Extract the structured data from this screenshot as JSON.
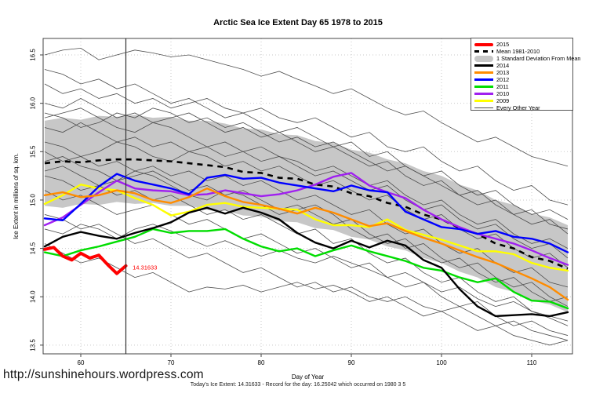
{
  "footer": {
    "url_watermark": "http://sunshinehours.wordpress.com",
    "caption": "Today's Ice Extent: 14.31633  - Record for the day: 16.25042 which occurred on 1980 3 5"
  },
  "chart_data": {
    "type": "line",
    "title": "Arctic Sea Ice Extent Day 65 1978 to 2015",
    "xlabel": "Day of Year",
    "ylabel": "Ice Extent in millions of sq. km.",
    "xlim": [
      55.8,
      114.5
    ],
    "ylim": [
      13.4,
      16.68
    ],
    "xticks": [
      60,
      70,
      80,
      90,
      100,
      110
    ],
    "yticks": [
      "13.5",
      "14.0",
      "14.5",
      "15.0",
      "15.5",
      "16.0",
      "16.5"
    ],
    "grid": "dotted",
    "legend_position": "top-right",
    "vline_x": 65,
    "annotation": {
      "text": "14.31633",
      "x": 65.4,
      "y": 14.3,
      "color": "#ff0000"
    },
    "x": [
      56,
      58,
      60,
      62,
      64,
      66,
      68,
      70,
      72,
      74,
      76,
      78,
      80,
      82,
      84,
      86,
      88,
      90,
      92,
      94,
      96,
      98,
      100,
      102,
      104,
      106,
      108,
      110,
      112,
      114
    ],
    "band": {
      "name": "1 Standard Deviation From Mean",
      "color": "#c7c7c7",
      "upper": [
        15.82,
        15.85,
        15.83,
        15.87,
        15.86,
        15.88,
        15.85,
        15.86,
        15.82,
        15.82,
        15.79,
        15.74,
        15.73,
        15.68,
        15.67,
        15.61,
        15.59,
        15.52,
        15.49,
        15.42,
        15.38,
        15.3,
        15.25,
        15.16,
        15.1,
        15.0,
        14.95,
        14.86,
        14.82,
        14.74
      ],
      "lower": [
        14.94,
        14.92,
        14.96,
        14.95,
        14.98,
        14.96,
        14.97,
        14.94,
        14.94,
        14.9,
        14.89,
        14.84,
        14.83,
        14.78,
        14.77,
        14.71,
        14.69,
        14.62,
        14.59,
        14.52,
        14.48,
        14.4,
        14.35,
        14.26,
        14.2,
        14.1,
        14.05,
        13.96,
        13.92,
        13.84
      ]
    },
    "mean": {
      "name": "Mean 1981-2010",
      "color": "#000000",
      "values": [
        15.38,
        15.4,
        15.39,
        15.41,
        15.42,
        15.42,
        15.41,
        15.4,
        15.38,
        15.36,
        15.34,
        15.29,
        15.28,
        15.23,
        15.22,
        15.16,
        15.14,
        15.07,
        15.04,
        14.97,
        14.93,
        14.85,
        14.8,
        14.71,
        14.65,
        14.55,
        14.5,
        14.41,
        14.37,
        14.29
      ]
    },
    "series": [
      {
        "name": "2015",
        "color": "#ff0000",
        "width": 4,
        "x": [
          56,
          57,
          58,
          59,
          60,
          61,
          62,
          63,
          64,
          65
        ],
        "values": [
          14.49,
          14.51,
          14.42,
          14.38,
          14.45,
          14.4,
          14.43,
          14.33,
          14.24,
          14.32
        ]
      },
      {
        "name": "2014",
        "color": "#000000",
        "width": 2.4,
        "values": [
          14.52,
          14.62,
          14.67,
          14.63,
          14.6,
          14.66,
          14.71,
          14.77,
          14.87,
          14.92,
          14.86,
          14.92,
          14.87,
          14.8,
          14.66,
          14.56,
          14.5,
          14.58,
          14.51,
          14.58,
          14.53,
          14.38,
          14.3,
          14.08,
          13.9,
          13.8,
          13.81,
          13.82,
          13.8,
          13.84
        ]
      },
      {
        "name": "2013",
        "color": "#ff8c00",
        "width": 2.4,
        "values": [
          15.05,
          15.08,
          15.03,
          15.05,
          15.1,
          15.07,
          15.0,
          14.97,
          15.03,
          15.12,
          15.04,
          14.98,
          14.95,
          14.91,
          14.86,
          14.92,
          14.87,
          14.8,
          14.73,
          14.76,
          14.68,
          14.61,
          14.55,
          14.48,
          14.41,
          14.35,
          14.27,
          14.19,
          14.1,
          13.97
        ]
      },
      {
        "name": "2012",
        "color": "#0000ff",
        "width": 2.4,
        "values": [
          14.81,
          14.79,
          14.96,
          15.14,
          15.27,
          15.2,
          15.16,
          15.12,
          15.06,
          15.23,
          15.26,
          15.22,
          15.23,
          15.18,
          15.15,
          15.12,
          15.09,
          15.15,
          15.1,
          15.08,
          14.88,
          14.8,
          14.72,
          14.7,
          14.65,
          14.68,
          14.62,
          14.6,
          14.55,
          14.46
        ]
      },
      {
        "name": "2011",
        "color": "#00dd00",
        "width": 2.4,
        "values": [
          14.46,
          14.42,
          14.48,
          14.52,
          14.57,
          14.62,
          14.7,
          14.66,
          14.68,
          14.68,
          14.7,
          14.6,
          14.52,
          14.47,
          14.5,
          14.42,
          14.48,
          14.53,
          14.47,
          14.42,
          14.37,
          14.3,
          14.27,
          14.2,
          14.15,
          14.19,
          14.05,
          13.96,
          13.95,
          13.88
        ]
      },
      {
        "name": "2010",
        "color": "#a020f0",
        "width": 2.4,
        "values": [
          14.74,
          14.82,
          14.95,
          15.08,
          15.2,
          15.12,
          15.1,
          15.09,
          15.05,
          15.06,
          15.1,
          15.07,
          15.04,
          15.06,
          15.1,
          15.16,
          15.24,
          15.28,
          15.15,
          15.08,
          15.02,
          14.9,
          14.8,
          14.72,
          14.65,
          14.6,
          14.55,
          14.48,
          14.4,
          14.33
        ]
      },
      {
        "name": "2009",
        "color": "#ffff00",
        "width": 2.4,
        "values": [
          14.96,
          15.05,
          15.16,
          15.12,
          15.1,
          15.02,
          14.95,
          14.84,
          14.88,
          14.95,
          14.97,
          14.93,
          14.92,
          14.91,
          14.9,
          14.8,
          14.74,
          14.74,
          14.72,
          14.8,
          14.69,
          14.64,
          14.59,
          14.53,
          14.47,
          14.47,
          14.44,
          14.35,
          14.3,
          14.27
        ]
      }
    ],
    "every_other_year": {
      "name": "Every Other Year",
      "color": "#4d4d4d",
      "width": 0.8,
      "lines": [
        [
          16.5,
          16.55,
          16.57,
          16.45,
          16.5,
          16.55,
          16.52,
          16.48,
          16.5,
          16.45,
          16.4,
          16.35,
          16.28,
          16.33,
          16.25,
          16.18,
          16.1,
          16.15,
          16.05,
          15.95,
          15.88,
          15.92,
          15.8,
          15.7,
          15.6,
          15.65,
          15.55,
          15.45,
          15.4,
          15.35
        ],
        [
          16.2,
          16.1,
          16.15,
          16.05,
          16.1,
          16.0,
          16.05,
          15.95,
          16.0,
          16.05,
          15.95,
          15.9,
          15.95,
          15.85,
          15.8,
          15.85,
          15.75,
          15.65,
          15.7,
          15.55,
          15.5,
          15.55,
          15.4,
          15.3,
          15.35,
          15.2,
          15.1,
          15.15,
          15.0,
          14.95
        ],
        [
          16.0,
          15.95,
          16.05,
          15.95,
          15.85,
          15.9,
          15.8,
          15.85,
          15.9,
          15.8,
          15.7,
          15.75,
          15.65,
          15.7,
          15.6,
          15.5,
          15.55,
          15.45,
          15.35,
          15.4,
          15.25,
          15.15,
          15.2,
          15.05,
          14.95,
          15.0,
          14.85,
          14.75,
          14.8,
          14.65
        ],
        [
          15.9,
          15.85,
          15.75,
          15.8,
          15.9,
          15.85,
          15.95,
          15.9,
          15.8,
          15.85,
          15.75,
          15.8,
          15.7,
          15.6,
          15.65,
          15.55,
          15.6,
          15.5,
          15.4,
          15.3,
          15.35,
          15.25,
          15.15,
          15.05,
          15.1,
          14.95,
          14.85,
          14.9,
          14.75,
          14.7
        ],
        [
          15.75,
          15.7,
          15.8,
          15.7,
          15.6,
          15.65,
          15.55,
          15.6,
          15.5,
          15.55,
          15.45,
          15.5,
          15.4,
          15.45,
          15.35,
          15.25,
          15.3,
          15.2,
          15.1,
          15.15,
          15.0,
          14.9,
          14.95,
          14.8,
          14.7,
          14.75,
          14.6,
          14.5,
          14.55,
          14.4
        ],
        [
          15.6,
          15.55,
          15.45,
          15.5,
          15.6,
          15.55,
          15.45,
          15.4,
          15.5,
          15.45,
          15.35,
          15.4,
          15.3,
          15.35,
          15.25,
          15.15,
          15.2,
          15.1,
          15.0,
          15.05,
          14.9,
          14.8,
          14.85,
          14.7,
          14.6,
          14.65,
          14.5,
          14.4,
          14.45,
          14.3
        ],
        [
          15.5,
          15.4,
          15.45,
          15.35,
          15.4,
          15.3,
          15.35,
          15.25,
          15.3,
          15.2,
          15.25,
          15.15,
          15.2,
          15.1,
          15.0,
          15.05,
          14.95,
          14.85,
          14.9,
          14.75,
          14.65,
          14.7,
          14.55,
          14.45,
          14.5,
          14.35,
          14.25,
          14.3,
          14.15,
          14.1
        ],
        [
          15.4,
          15.45,
          15.35,
          15.3,
          15.2,
          15.25,
          15.3,
          15.2,
          15.1,
          15.15,
          15.05,
          15.1,
          15.0,
          14.9,
          14.95,
          14.85,
          14.75,
          14.8,
          14.65,
          14.55,
          14.6,
          14.45,
          14.35,
          14.4,
          14.25,
          14.15,
          14.2,
          14.05,
          13.95,
          14.0
        ],
        [
          15.25,
          15.2,
          15.1,
          15.15,
          15.05,
          15.1,
          15.0,
          15.05,
          14.95,
          14.85,
          14.9,
          14.8,
          14.85,
          14.75,
          14.65,
          14.7,
          14.55,
          14.6,
          14.45,
          14.35,
          14.4,
          14.25,
          14.15,
          14.2,
          14.05,
          13.95,
          14.0,
          13.85,
          13.8,
          13.75
        ],
        [
          15.1,
          15.0,
          15.05,
          14.95,
          14.85,
          14.9,
          14.95,
          14.85,
          14.75,
          14.8,
          14.7,
          14.6,
          14.65,
          14.55,
          14.45,
          14.5,
          14.4,
          14.3,
          14.35,
          14.2,
          14.1,
          14.15,
          14.0,
          13.9,
          13.95,
          13.8,
          13.7,
          13.75,
          13.65,
          13.6
        ],
        [
          14.85,
          14.8,
          14.7,
          14.75,
          14.65,
          14.55,
          14.6,
          14.5,
          14.4,
          14.45,
          14.35,
          14.25,
          14.3,
          14.2,
          14.1,
          14.15,
          14.05,
          14.1,
          14.0,
          13.95,
          14.0,
          13.9,
          13.85,
          13.9,
          13.8,
          13.7,
          13.75,
          13.65,
          13.6,
          13.55
        ],
        [
          14.55,
          14.45,
          14.35,
          14.4,
          14.3,
          14.2,
          14.25,
          14.15,
          14.05,
          14.1,
          14.08,
          14.12,
          14.05,
          14.1,
          14.15,
          14.08,
          14.12,
          14.05,
          13.95,
          14.0,
          13.9,
          13.8,
          13.85,
          13.75,
          13.65,
          13.7,
          13.6,
          13.55,
          13.5,
          13.55
        ],
        [
          15.3,
          15.35,
          15.25,
          15.15,
          15.2,
          15.3,
          15.25,
          15.15,
          15.05,
          15.0,
          15.1,
          15.05,
          14.95,
          14.85,
          14.9,
          14.95,
          14.85,
          14.7,
          14.6,
          14.65,
          14.5,
          14.55,
          14.4,
          14.3,
          14.35,
          14.2,
          14.1,
          14.15,
          14.0,
          13.9
        ],
        [
          16.35,
          16.3,
          16.2,
          16.25,
          16.15,
          16.2,
          16.1,
          16.0,
          16.05,
          15.95,
          15.85,
          15.9,
          15.8,
          15.7,
          15.75,
          15.65,
          15.55,
          15.6,
          15.45,
          15.5,
          15.35,
          15.25,
          15.3,
          15.15,
          15.05,
          15.1,
          14.95,
          14.85,
          14.9,
          14.8
        ],
        [
          15.85,
          15.9,
          15.95,
          15.85,
          15.75,
          15.7,
          15.8,
          15.75,
          15.65,
          15.55,
          15.6,
          15.5,
          15.55,
          15.45,
          15.4,
          15.3,
          15.35,
          15.25,
          15.15,
          15.2,
          15.05,
          14.95,
          15.0,
          14.85,
          14.75,
          14.8,
          14.65,
          14.55,
          14.6,
          14.5
        ],
        [
          14.7,
          14.65,
          14.75,
          14.7,
          14.6,
          14.7,
          14.75,
          14.68,
          14.6,
          14.52,
          14.58,
          14.5,
          14.42,
          14.48,
          14.4,
          14.35,
          14.42,
          14.35,
          14.28,
          14.2,
          14.25,
          14.15,
          14.05,
          14.1,
          13.98,
          13.9,
          13.95,
          13.85,
          13.78,
          13.7
        ]
      ]
    },
    "legend": [
      {
        "label": "2015",
        "swatch": "thick",
        "color": "#ff0000"
      },
      {
        "label": "Mean 1981-2010",
        "swatch": "dashed",
        "color": "#000000"
      },
      {
        "label": "1 Standard Deviation From Mean",
        "swatch": "band",
        "color": "#c7c7c7"
      },
      {
        "label": "2014",
        "swatch": "line",
        "color": "#000000"
      },
      {
        "label": "2013",
        "swatch": "line",
        "color": "#ff8c00"
      },
      {
        "label": "2012",
        "swatch": "line",
        "color": "#0000ff"
      },
      {
        "label": "2011",
        "swatch": "line",
        "color": "#00dd00"
      },
      {
        "label": "2010",
        "swatch": "line",
        "color": "#a020f0"
      },
      {
        "label": "2009",
        "swatch": "line",
        "color": "#ffff00"
      },
      {
        "label": "Every Other Year",
        "swatch": "thin",
        "color": "#4d4d4d"
      }
    ]
  }
}
